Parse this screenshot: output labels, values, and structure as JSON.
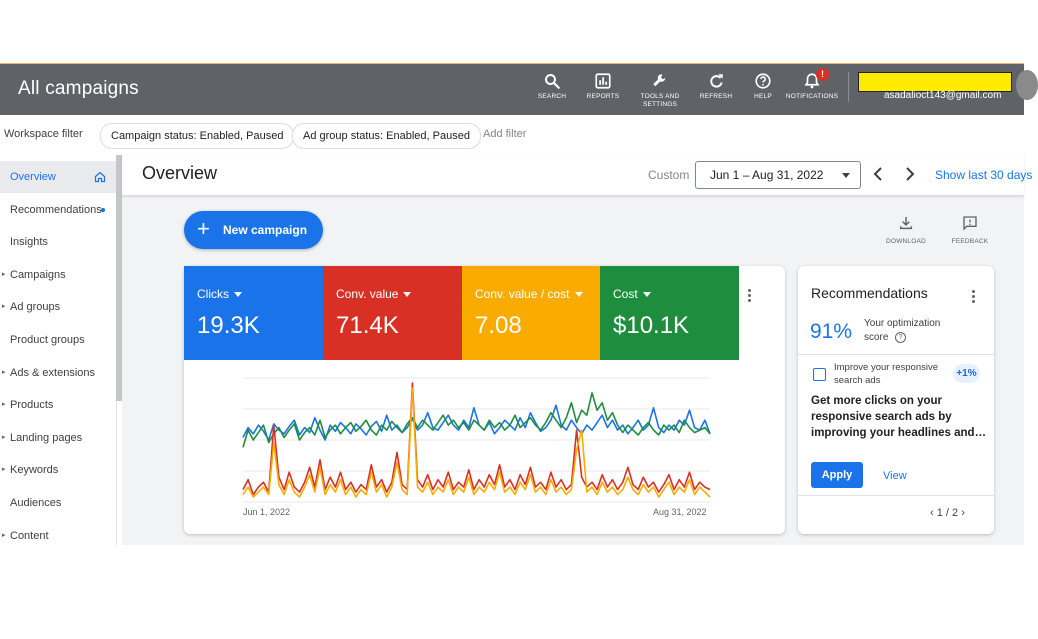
{
  "header": {
    "title": "All campaigns",
    "nav": [
      {
        "label": "SEARCH",
        "icon": "search-icon"
      },
      {
        "label": "REPORTS",
        "icon": "reports-icon"
      },
      {
        "label": "TOOLS AND",
        "label2": "SETTINGS",
        "icon": "wrench-icon"
      },
      {
        "label": "REFRESH",
        "icon": "refresh-icon"
      },
      {
        "label": "HELP",
        "icon": "help-icon"
      },
      {
        "label": "NOTIFICATIONS",
        "icon": "bell-icon",
        "badge": "!"
      }
    ],
    "email": "asadalioct143@gmail.com"
  },
  "filters": {
    "workspace_label": "Workspace filter",
    "chips": [
      "Campaign status: Enabled, Paused",
      "Ad group status: Enabled, Paused"
    ],
    "add_filter": "Add filter"
  },
  "sidebar": {
    "items": [
      {
        "label": "Overview",
        "active": true,
        "caret": false
      },
      {
        "label": "Recommendations",
        "caret": false,
        "dot": true
      },
      {
        "label": "Insights",
        "caret": false
      },
      {
        "label": "Campaigns",
        "caret": true
      },
      {
        "label": "Ad groups",
        "caret": true
      },
      {
        "label": "Product groups",
        "caret": false
      },
      {
        "label": "Ads & extensions",
        "caret": true
      },
      {
        "label": "Products",
        "caret": true
      },
      {
        "label": "Landing pages",
        "caret": true
      },
      {
        "label": "Keywords",
        "caret": true
      },
      {
        "label": "Audiences",
        "caret": false
      },
      {
        "label": "Content",
        "caret": true
      }
    ]
  },
  "overview": {
    "title": "Overview",
    "custom_label": "Custom",
    "date_range": "Jun 1 – Aug 31, 2022",
    "show_last": "Show last 30 days",
    "new_campaign": "New campaign",
    "download": "DOWNLOAD",
    "feedback": "FEEDBACK"
  },
  "metrics": [
    {
      "name": "Clicks",
      "value": "19.3K",
      "color": "#1a73e8"
    },
    {
      "name": "Conv. value",
      "value": "71.4K",
      "color": "#d93025"
    },
    {
      "name": "Conv. value / cost",
      "value": "7.08",
      "color": "#f9ab00"
    },
    {
      "name": "Cost",
      "value": "$10.1K",
      "color": "#1e8e3e"
    }
  ],
  "chart_data": {
    "type": "line",
    "x_start": "Jun 1, 2022",
    "x_end": "Aug 31, 2022",
    "grid": true,
    "series": [
      {
        "color": "#1a73e8",
        "values": [
          0.52,
          0.6,
          0.55,
          0.62,
          0.57,
          0.5,
          0.63,
          0.58,
          0.55,
          0.61,
          0.66,
          0.54,
          0.6,
          0.56,
          0.68,
          0.58,
          0.5,
          0.62,
          0.57,
          0.64,
          0.6,
          0.55,
          0.63,
          0.59,
          0.54,
          0.61,
          0.65,
          0.57,
          0.7,
          0.58,
          0.62,
          0.56,
          0.6,
          0.67,
          0.58,
          0.62,
          0.72,
          0.6,
          0.58,
          0.64,
          0.7,
          0.62,
          0.58,
          0.66,
          0.6,
          0.76,
          0.62,
          0.58,
          0.64,
          0.55,
          0.6,
          0.66,
          0.62,
          0.58,
          0.68,
          0.6,
          0.72,
          0.64,
          0.57,
          0.6,
          0.66,
          0.78,
          0.62,
          0.58,
          0.66,
          0.6,
          0.55,
          0.62,
          0.58,
          0.64,
          0.7,
          0.6,
          0.66,
          0.58,
          0.62,
          0.55,
          0.6,
          0.66,
          0.58,
          0.62,
          0.76,
          0.6,
          0.56,
          0.62,
          0.58,
          0.66,
          0.62,
          0.74,
          0.6,
          0.58,
          0.66,
          0.55
        ]
      },
      {
        "color": "#1e8e3e",
        "values": [
          0.44,
          0.58,
          0.5,
          0.56,
          0.62,
          0.48,
          0.55,
          0.6,
          0.52,
          0.58,
          0.63,
          0.5,
          0.56,
          0.6,
          0.54,
          0.66,
          0.52,
          0.58,
          0.62,
          0.55,
          0.6,
          0.64,
          0.57,
          0.61,
          0.66,
          0.58,
          0.54,
          0.62,
          0.58,
          0.65,
          0.6,
          0.56,
          0.63,
          0.68,
          0.6,
          0.66,
          0.62,
          0.58,
          0.64,
          0.7,
          0.62,
          0.66,
          0.6,
          0.64,
          0.58,
          0.66,
          0.62,
          0.58,
          0.66,
          0.6,
          0.64,
          0.58,
          0.62,
          0.7,
          0.6,
          0.64,
          0.68,
          0.62,
          0.58,
          0.64,
          0.72,
          0.66,
          0.6,
          0.68,
          0.8,
          0.64,
          0.74,
          0.7,
          0.88,
          0.74,
          0.8,
          0.66,
          0.72,
          0.62,
          0.56,
          0.62,
          0.58,
          0.54,
          0.6,
          0.64,
          0.58,
          0.54,
          0.62,
          0.58,
          0.62,
          0.56,
          0.66,
          0.6,
          0.56,
          0.58,
          0.6,
          0.55
        ]
      },
      {
        "color": "#d93025",
        "values": [
          0.1,
          0.18,
          0.06,
          0.12,
          0.16,
          0.08,
          0.62,
          0.2,
          0.1,
          0.24,
          0.12,
          0.08,
          0.16,
          0.28,
          0.12,
          0.34,
          0.1,
          0.2,
          0.12,
          0.24,
          0.1,
          0.16,
          0.08,
          0.14,
          0.1,
          0.3,
          0.12,
          0.18,
          0.08,
          0.16,
          0.4,
          0.14,
          0.1,
          0.96,
          0.18,
          0.12,
          0.22,
          0.1,
          0.18,
          0.12,
          0.24,
          0.1,
          0.16,
          0.12,
          0.26,
          0.1,
          0.18,
          0.12,
          0.22,
          0.14,
          0.3,
          0.12,
          0.18,
          0.1,
          0.22,
          0.14,
          0.28,
          0.12,
          0.16,
          0.1,
          0.24,
          0.12,
          0.18,
          0.1,
          0.14,
          0.58,
          0.2,
          0.12,
          0.16,
          0.1,
          0.22,
          0.12,
          0.18,
          0.1,
          0.16,
          0.28,
          0.14,
          0.1,
          0.2,
          0.12,
          0.16,
          0.08,
          0.14,
          0.22,
          0.1,
          0.18,
          0.12,
          0.24,
          0.1,
          0.16,
          0.12,
          0.1
        ]
      },
      {
        "color": "#f9ab00",
        "values": [
          0.06,
          0.12,
          0.04,
          0.08,
          0.12,
          0.06,
          0.48,
          0.14,
          0.06,
          0.18,
          0.08,
          0.04,
          0.12,
          0.22,
          0.08,
          0.28,
          0.06,
          0.14,
          0.08,
          0.18,
          0.06,
          0.12,
          0.04,
          0.1,
          0.06,
          0.24,
          0.08,
          0.14,
          0.04,
          0.12,
          0.32,
          0.1,
          0.06,
          0.92,
          0.12,
          0.08,
          0.16,
          0.06,
          0.12,
          0.08,
          0.18,
          0.06,
          0.12,
          0.08,
          0.2,
          0.06,
          0.12,
          0.08,
          0.16,
          0.1,
          0.24,
          0.08,
          0.12,
          0.06,
          0.16,
          0.1,
          0.22,
          0.08,
          0.12,
          0.06,
          0.18,
          0.08,
          0.12,
          0.06,
          0.1,
          0.42,
          0.58,
          0.08,
          0.12,
          0.06,
          0.16,
          0.08,
          0.12,
          0.06,
          0.1,
          0.2,
          0.1,
          0.06,
          0.14,
          0.08,
          0.12,
          0.04,
          0.1,
          0.16,
          0.06,
          0.12,
          0.08,
          0.18,
          0.06,
          0.12,
          0.08,
          0.04
        ]
      }
    ]
  },
  "recommendations": {
    "title": "Recommendations",
    "score": "91%",
    "score_label1": "Your optimization",
    "score_label2": "score",
    "item_title1": "Improve your responsive",
    "item_title2": "search ads",
    "boost": "+1%",
    "body1": "Get more clicks on your",
    "body2": "responsive search ads by",
    "body3": "improving your headlines and…",
    "apply": "Apply",
    "view": "View",
    "pager": "1 / 2"
  }
}
